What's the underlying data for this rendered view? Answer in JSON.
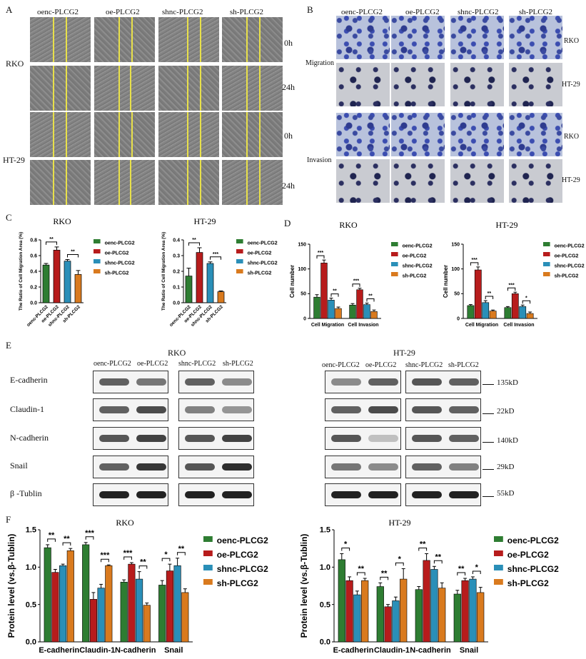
{
  "panels": {
    "A": "A",
    "B": "B",
    "C": "C",
    "D": "D",
    "E": "E",
    "F": "F"
  },
  "panelA": {
    "columns": [
      "oenc-PLCG2",
      "oe-PLCG2",
      "shnc-PLCG2",
      "sh-PLCG2"
    ],
    "rows": [
      "0h",
      "24h",
      "0h",
      "24h"
    ],
    "groups": [
      "RKO",
      "HT-29"
    ]
  },
  "panelB": {
    "columns": [
      "oenc-PLCG2",
      "oe-PLCG2",
      "shnc-PLCG2",
      "sh-PLCG2"
    ],
    "row_labels": [
      "RKO",
      "HT-29",
      "RKO",
      "HT-29"
    ],
    "groups": [
      "Migration",
      "Invasion"
    ]
  },
  "panelE": {
    "rko_title": "RKO",
    "ht_title": "HT-29",
    "lanes": [
      "oenc-PLCG2",
      "oe-PLCG2",
      "shnc-PLCG2",
      "sh-PLCG2"
    ],
    "proteins": [
      "E-cadherin",
      "Claudin-1",
      "N-cadherin",
      "Snail",
      "β -Tublin"
    ],
    "sizes": [
      "135kD",
      "22kD",
      "140kD",
      "29kD",
      "55kD"
    ]
  },
  "legend_labels": [
    "oenc-PLCG2",
    "oe-PLCG2",
    "shnc-PLCG2",
    "sh-PLCG2"
  ],
  "colors": {
    "oenc": "#2e7d32",
    "oe": "#b71c1c",
    "shnc": "#2a8fb8",
    "sh": "#d97a1e"
  },
  "chart_data": [
    {
      "id": "C-RKO",
      "type": "bar",
      "title": "RKO",
      "ylabel": "The Ratio of Cell Migration Area (%)",
      "categories": [
        "oenc-PLCG2",
        "oe-PLCG2",
        "shnc-PLCG2",
        "sh-PLCG2"
      ],
      "values": [
        0.48,
        0.67,
        0.53,
        0.36
      ],
      "errors": [
        0.02,
        0.04,
        0.02,
        0.05
      ],
      "ylim": [
        0,
        0.8
      ],
      "yticks": [
        "0.0",
        "0.2",
        "0.4",
        "0.6",
        "0.8"
      ],
      "sig": [
        {
          "a": 0,
          "b": 1,
          "label": "**"
        },
        {
          "a": 2,
          "b": 3,
          "label": "**"
        }
      ]
    },
    {
      "id": "C-HT29",
      "type": "bar",
      "title": "HT-29",
      "ylabel": "The Ratio of Cell Migration Area (%)",
      "categories": [
        "oenc-PLCG2",
        "oe-PLCG2",
        "shnc-PLCG2",
        "sh-PLCG2"
      ],
      "values": [
        0.17,
        0.32,
        0.25,
        0.07
      ],
      "errors": [
        0.05,
        0.03,
        0.01,
        0.005
      ],
      "ylim": [
        0,
        0.4
      ],
      "yticks": [
        "0.0",
        "0.1",
        "0.2",
        "0.3",
        "0.4"
      ],
      "sig": [
        {
          "a": 0,
          "b": 1,
          "label": "**"
        },
        {
          "a": 2,
          "b": 3,
          "label": "***"
        }
      ]
    },
    {
      "id": "D-RKO",
      "type": "bar",
      "title": "RKO",
      "ylabel": "Cell number",
      "categories": [
        "Cell Migration",
        "Cell Invasion"
      ],
      "series": [
        {
          "name": "oenc-PLCG2",
          "values": [
            43,
            27
          ],
          "errors": [
            5,
            3
          ]
        },
        {
          "name": "oe-PLCG2",
          "values": [
            112,
            58
          ],
          "errors": [
            6,
            3
          ]
        },
        {
          "name": "shnc-PLCG2",
          "values": [
            37,
            28
          ],
          "errors": [
            4,
            3
          ]
        },
        {
          "name": "sh-PLCG2",
          "values": [
            20,
            14
          ],
          "errors": [
            3,
            3
          ]
        }
      ],
      "ylim": [
        0,
        150
      ],
      "yticks": [
        "0",
        "50",
        "100",
        "150"
      ],
      "sig": [
        [
          "***",
          "**"
        ],
        [
          "***",
          "**"
        ]
      ]
    },
    {
      "id": "D-HT29",
      "type": "bar",
      "title": "HT-29",
      "ylabel": "Cell number",
      "categories": [
        "Cell Migration",
        "Cell Invasion"
      ],
      "series": [
        {
          "name": "oenc-PLCG2",
          "values": [
            26,
            22
          ],
          "errors": [
            2,
            2
          ]
        },
        {
          "name": "oe-PLCG2",
          "values": [
            98,
            50
          ],
          "errors": [
            6,
            3
          ]
        },
        {
          "name": "shnc-PLCG2",
          "values": [
            32,
            24
          ],
          "errors": [
            4,
            3
          ]
        },
        {
          "name": "sh-PLCG2",
          "values": [
            15,
            10
          ],
          "errors": [
            2,
            3
          ]
        }
      ],
      "ylim": [
        0,
        150
      ],
      "yticks": [
        "0",
        "50",
        "100",
        "150"
      ],
      "sig": [
        [
          "***",
          "**"
        ],
        [
          "***",
          "*"
        ]
      ]
    },
    {
      "id": "F-RKO",
      "type": "bar",
      "title": "RKO",
      "ylabel": "Protein level (vs.β-Tublin)",
      "categories": [
        "E-cadherin",
        "Claudin-1",
        "N-cadherin",
        "Snail"
      ],
      "series": [
        {
          "name": "oenc-PLCG2",
          "values": [
            1.26,
            1.3,
            0.8,
            0.76
          ],
          "errors": [
            0.04,
            0.03,
            0.03,
            0.06
          ]
        },
        {
          "name": "oe-PLCG2",
          "values": [
            0.93,
            0.57,
            1.04,
            0.95
          ],
          "errors": [
            0.04,
            0.09,
            0.02,
            0.09
          ]
        },
        {
          "name": "shnc-PLCG2",
          "values": [
            1.02,
            0.72,
            0.84,
            1.02
          ],
          "errors": [
            0.02,
            0.05,
            0.1,
            0.1
          ]
        },
        {
          "name": "sh-PLCG2",
          "values": [
            1.22,
            1.02,
            0.49,
            0.66
          ],
          "errors": [
            0.03,
            0.01,
            0.03,
            0.05
          ]
        }
      ],
      "ylim": [
        0,
        1.5
      ],
      "yticks": [
        "0.0",
        "0.5",
        "1.0",
        "1.5"
      ],
      "sig": [
        [
          "**",
          "**"
        ],
        [
          "***",
          "***"
        ],
        [
          "***",
          "**"
        ],
        [
          "*",
          "**"
        ]
      ]
    },
    {
      "id": "F-HT29",
      "type": "bar",
      "title": "HT-29",
      "ylabel": "Protein level (vs.β-Tublin)",
      "categories": [
        "E-cadherin",
        "Claudin-1",
        "N-cadherin",
        "Snail"
      ],
      "series": [
        {
          "name": "oenc-PLCG2",
          "values": [
            1.1,
            0.74,
            0.7,
            0.64
          ],
          "errors": [
            0.08,
            0.05,
            0.04,
            0.05
          ]
        },
        {
          "name": "oe-PLCG2",
          "values": [
            0.82,
            0.47,
            1.09,
            0.82
          ],
          "errors": [
            0.05,
            0.03,
            0.09,
            0.03
          ]
        },
        {
          "name": "shnc-PLCG2",
          "values": [
            0.63,
            0.55,
            0.97,
            0.84
          ],
          "errors": [
            0.05,
            0.05,
            0.04,
            0.03
          ]
        },
        {
          "name": "sh-PLCG2",
          "values": [
            0.82,
            0.84,
            0.72,
            0.66
          ],
          "errors": [
            0.03,
            0.14,
            0.07,
            0.07
          ]
        }
      ],
      "ylim": [
        0,
        1.5
      ],
      "yticks": [
        "0.0",
        "0.5",
        "1.0",
        "1.5"
      ],
      "sig": [
        [
          "*",
          "**"
        ],
        [
          "**",
          "*"
        ],
        [
          "**",
          "**"
        ],
        [
          "**",
          "*"
        ]
      ]
    }
  ]
}
